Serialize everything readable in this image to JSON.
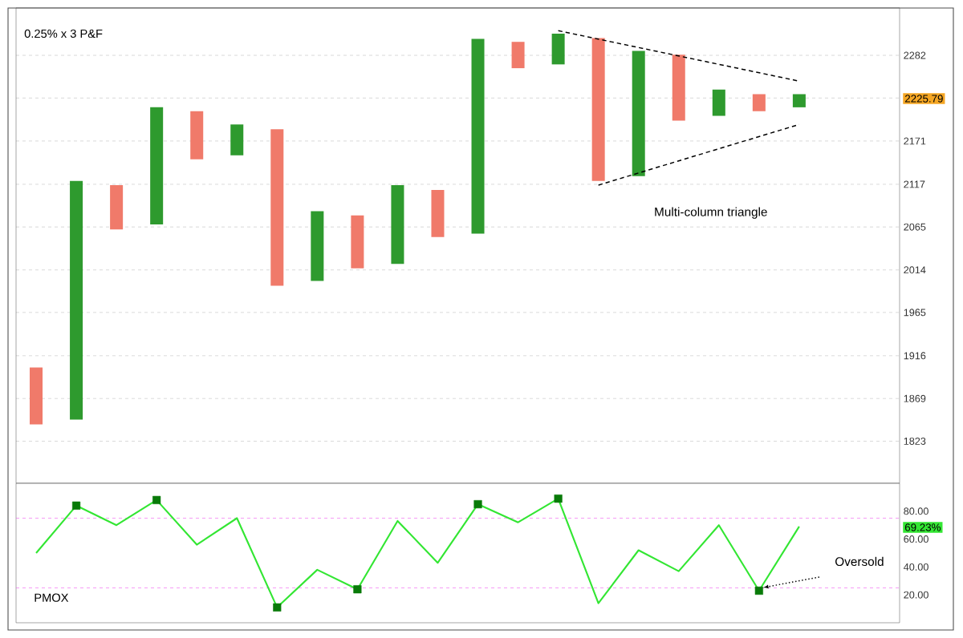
{
  "chart_data": [
    {
      "type": "bar",
      "title": "0.25% x 3 P&F",
      "categories": [
        null,
        null,
        null,
        null,
        null,
        null,
        null,
        null,
        null,
        null,
        null,
        null,
        null,
        null,
        null,
        null,
        null,
        null,
        null,
        null,
        null,
        null
      ],
      "series": [
        {
          "values": [
            62,
            275,
            54,
            146,
            61,
            39,
            190,
            83,
            63,
            95,
            57,
            247,
            35,
            41,
            184,
            161,
            86,
            34,
            22,
            17,
            null,
            null
          ],
          "base": [
            1841,
            1846,
            2062,
            2068,
            2148,
            2153,
            1996,
            2001,
            2016,
            2021,
            2053,
            2057,
            2265,
            2270,
            2121,
            2127,
            2197,
            2203,
            2209,
            2214,
            null,
            null
          ],
          "colors": [
            "#f07a6a",
            "#2e9a2e",
            "#f07a6a",
            "#2e9a2e",
            "#f07a6a",
            "#2e9a2e",
            "#f07a6a",
            "#2e9a2e",
            "#f07a6a",
            "#2e9a2e",
            "#f07a6a",
            "#2e9a2e",
            "#f07a6a",
            "#2e9a2e",
            "#f07a6a",
            "#2e9a2e",
            "#f07a6a",
            "#2e9a2e",
            "#f07a6a",
            "#2e9a2e",
            "#f07a6a",
            "#2e9a2e"
          ]
        },
        {
          "type": "line",
          "color": "#000000",
          "line_style": "dashed",
          "values": [
            null,
            null,
            null,
            null,
            null,
            null,
            null,
            null,
            null,
            null,
            null,
            null,
            null,
            2315,
            null,
            null,
            null,
            null,
            null,
            2248,
            null,
            null
          ]
        },
        {
          "type": "line",
          "color": "#000000",
          "line_style": "dashed",
          "values": [
            null,
            null,
            null,
            null,
            null,
            null,
            null,
            null,
            null,
            null,
            null,
            null,
            null,
            null,
            2116,
            null,
            null,
            null,
            null,
            2192,
            null,
            null
          ]
        }
      ],
      "ylim": [
        1779,
        2346
      ],
      "log": "y",
      "yticks": [
        2282,
        {
          "value": 2226,
          "label": null
        },
        2171,
        2117,
        2065,
        2014,
        1965,
        1916,
        1869,
        1823
      ],
      "grid": "y",
      "tick_labels": "y",
      "annotations": [
        "2225.79",
        "Multi-column triangle"
      ]
    },
    {
      "type": "line",
      "title": "PMOX",
      "categories": [
        null,
        null,
        null,
        null,
        null,
        null,
        null,
        null,
        null,
        null,
        null,
        null,
        null,
        null,
        null,
        null,
        null,
        null,
        null,
        null,
        null,
        null
      ],
      "series": [
        {
          "color": "#33e633",
          "values": [
            50,
            84,
            70,
            88,
            56,
            75,
            11,
            38,
            24,
            73,
            43,
            85,
            72,
            89,
            14,
            52,
            37,
            70,
            23,
            69,
            null,
            null
          ]
        },
        {
          "type": "scatter",
          "color": "#087a08",
          "marker": "square",
          "values": [
            null,
            84,
            null,
            88,
            null,
            null,
            11,
            null,
            24,
            null,
            null,
            85,
            null,
            89,
            null,
            null,
            null,
            null,
            23,
            null,
            null,
            null
          ]
        }
      ],
      "ylim": [
        0,
        100
      ],
      "yticks": [
        {
          "value": 20,
          "label": "20.00"
        },
        {
          "value": 40,
          "label": "40.00"
        },
        {
          "value": 60,
          "label": "60.00"
        },
        {
          "value": 80,
          "label": "80.00"
        }
      ],
      "ref_lines": [
        {
          "axis": "y",
          "value": 75,
          "color": "#ee44ee",
          "line_style": "dashed"
        },
        {
          "axis": "y",
          "value": 25,
          "color": "#ee44ee",
          "line_style": "dashed"
        }
      ],
      "tick_labels": "y",
      "annotations": [
        "69.23%",
        "Oversold"
      ]
    }
  ]
}
